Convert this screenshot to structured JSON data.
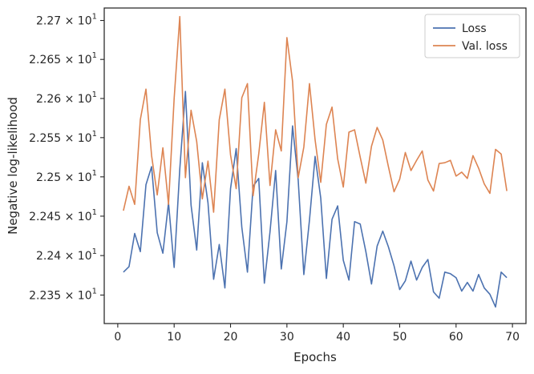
{
  "chart_data": {
    "type": "line",
    "xlabel": "Epochs",
    "ylabel": "Negative log-likelihood",
    "x_ticks": [
      0,
      10,
      20,
      30,
      40,
      50,
      60,
      70
    ],
    "y_ticks": [
      {
        "value": 22.35,
        "mantissa": "2.235",
        "base": "10",
        "exp": "1"
      },
      {
        "value": 22.4,
        "mantissa": "2.24",
        "base": "10",
        "exp": "1"
      },
      {
        "value": 22.45,
        "mantissa": "2.245",
        "base": "10",
        "exp": "1"
      },
      {
        "value": 22.5,
        "mantissa": "2.25",
        "base": "10",
        "exp": "1"
      },
      {
        "value": 22.55,
        "mantissa": "2.255",
        "base": "10",
        "exp": "1"
      },
      {
        "value": 22.6,
        "mantissa": "2.26",
        "base": "10",
        "exp": "1"
      },
      {
        "value": 22.65,
        "mantissa": "2.265",
        "base": "10",
        "exp": "1"
      },
      {
        "value": 22.7,
        "mantissa": "2.27",
        "base": "10",
        "exp": "1"
      }
    ],
    "xlim": [
      -2.4,
      72.4
    ],
    "ylim": [
      22.314,
      22.716
    ],
    "y_scale": "log",
    "grid": false,
    "legend_position": "top-right",
    "series": [
      {
        "name": "Loss",
        "color": "#4c72b0",
        "x": [
          1,
          2,
          3,
          4,
          5,
          6,
          7,
          8,
          9,
          10,
          11,
          12,
          13,
          14,
          15,
          16,
          17,
          18,
          19,
          20,
          21,
          22,
          23,
          24,
          25,
          26,
          27,
          28,
          29,
          30,
          31,
          32,
          33,
          34,
          35,
          36,
          37,
          38,
          39,
          40,
          41,
          42,
          43,
          44,
          45,
          46,
          47,
          48,
          49,
          50,
          51,
          52,
          53,
          54,
          55,
          56,
          57,
          58,
          59,
          60,
          61,
          62,
          63,
          64,
          65,
          66,
          67,
          68,
          69
        ],
        "values": [
          22.379,
          22.386,
          22.428,
          22.405,
          22.49,
          22.513,
          22.429,
          22.403,
          22.467,
          22.385,
          22.51,
          22.609,
          22.464,
          22.407,
          22.518,
          22.467,
          22.37,
          22.414,
          22.359,
          22.485,
          22.536,
          22.436,
          22.379,
          22.488,
          22.498,
          22.365,
          22.43,
          22.508,
          22.383,
          22.443,
          22.565,
          22.496,
          22.376,
          22.445,
          22.526,
          22.473,
          22.371,
          22.446,
          22.463,
          22.394,
          22.369,
          22.443,
          22.44,
          22.405,
          22.364,
          22.412,
          22.431,
          22.411,
          22.387,
          22.357,
          22.368,
          22.393,
          22.369,
          22.385,
          22.395,
          22.354,
          22.346,
          22.379,
          22.377,
          22.372,
          22.355,
          22.366,
          22.355,
          22.376,
          22.359,
          22.351,
          22.335,
          22.379,
          22.372
        ]
      },
      {
        "name": "Val. loss",
        "color": "#dd8452",
        "x": [
          1,
          2,
          3,
          4,
          5,
          6,
          7,
          8,
          9,
          10,
          11,
          12,
          13,
          14,
          15,
          16,
          17,
          18,
          19,
          20,
          21,
          22,
          23,
          24,
          25,
          26,
          27,
          28,
          29,
          30,
          31,
          32,
          33,
          34,
          35,
          36,
          37,
          38,
          39,
          40,
          41,
          42,
          43,
          44,
          45,
          46,
          47,
          48,
          49,
          50,
          51,
          52,
          53,
          54,
          55,
          56,
          57,
          58,
          59,
          60,
          61,
          62,
          63,
          64,
          65,
          66,
          67,
          68,
          69
        ],
        "values": [
          22.457,
          22.488,
          22.465,
          22.573,
          22.612,
          22.527,
          22.477,
          22.537,
          22.465,
          22.6,
          22.705,
          22.499,
          22.585,
          22.545,
          22.472,
          22.52,
          22.455,
          22.573,
          22.612,
          22.528,
          22.485,
          22.601,
          22.619,
          22.476,
          22.529,
          22.595,
          22.489,
          22.56,
          22.533,
          22.678,
          22.622,
          22.499,
          22.538,
          22.619,
          22.547,
          22.493,
          22.567,
          22.589,
          22.523,
          22.487,
          22.557,
          22.56,
          22.525,
          22.492,
          22.539,
          22.563,
          22.547,
          22.513,
          22.481,
          22.497,
          22.531,
          22.508,
          22.521,
          22.533,
          22.496,
          22.482,
          22.517,
          22.518,
          22.521,
          22.501,
          22.506,
          22.498,
          22.527,
          22.511,
          22.491,
          22.479,
          22.535,
          22.529,
          22.482
        ]
      }
    ]
  }
}
